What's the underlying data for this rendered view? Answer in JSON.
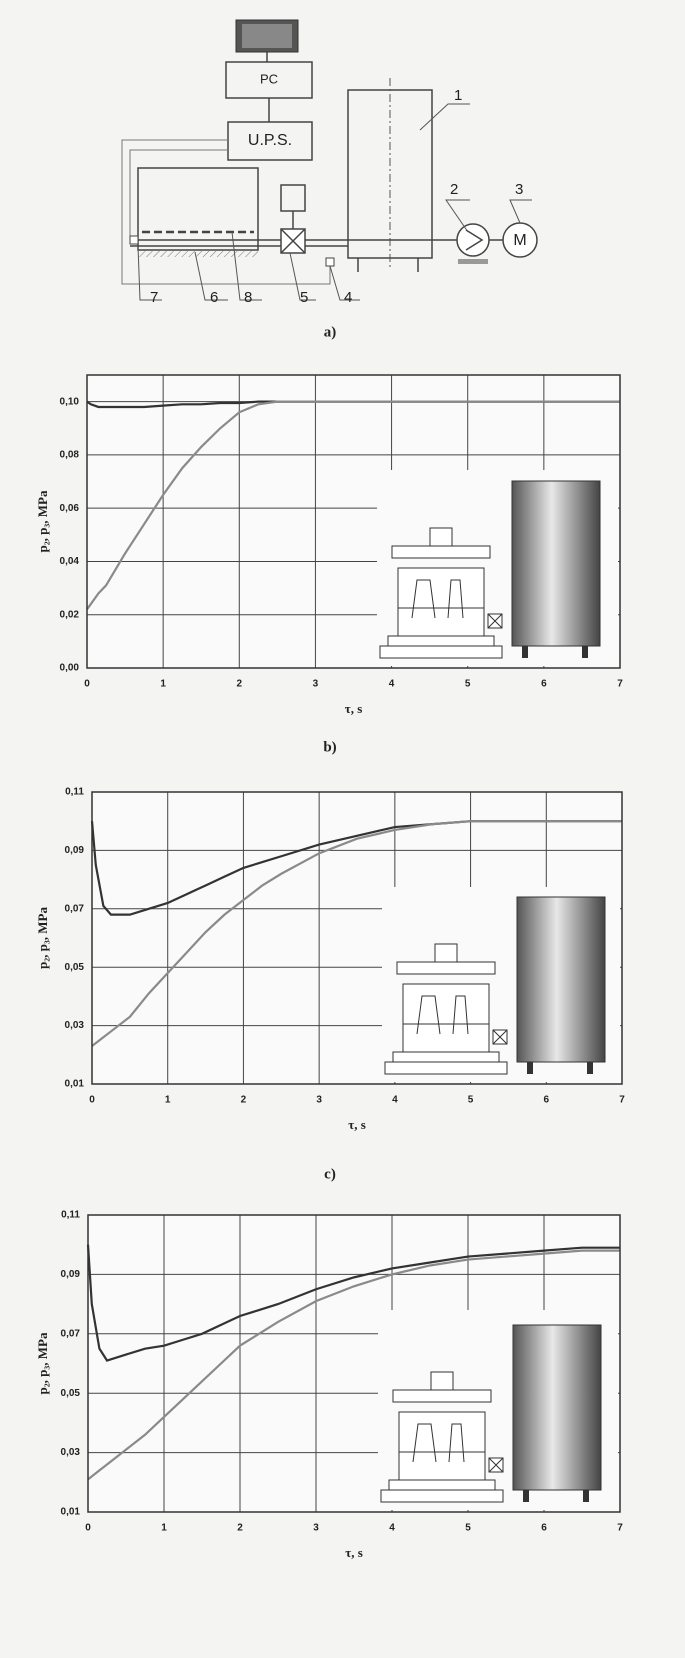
{
  "diagram": {
    "pc": "PC",
    "ups": "U.P.S.",
    "motor": "M",
    "numbers": [
      "1",
      "2",
      "3",
      "4",
      "5",
      "6",
      "7",
      "8"
    ],
    "caption": "a)"
  },
  "chart_data": [
    {
      "type": "line",
      "caption": "b)",
      "y_label": "p₂, p₃, MPa",
      "x_label": "τ, s",
      "grid": true,
      "x": [
        0,
        0.05,
        0.15,
        0.25,
        0.5,
        0.75,
        1,
        1.25,
        1.5,
        1.75,
        2,
        2.25,
        2.5,
        3,
        3.5,
        4,
        4.5,
        5,
        5.5,
        6,
        6.5,
        7
      ],
      "series": [
        {
          "color": "#333333",
          "values": [
            0.1,
            0.099,
            0.098,
            0.098,
            0.098,
            0.098,
            0.0985,
            0.099,
            0.099,
            0.0995,
            0.0995,
            0.1,
            0.1,
            0.1,
            0.1,
            0.1,
            0.1,
            0.1,
            0.1,
            0.1,
            0.1,
            0.1
          ]
        },
        {
          "color": "#8a8a8a",
          "values": [
            0.022,
            0.024,
            0.028,
            0.031,
            0.043,
            0.054,
            0.065,
            0.075,
            0.083,
            0.09,
            0.096,
            0.099,
            0.1,
            0.1,
            0.1,
            0.1,
            0.1,
            0.1,
            0.1,
            0.1,
            0.1,
            0.1
          ]
        }
      ],
      "xlim": [
        0,
        7
      ],
      "xticks": [
        0,
        1,
        2,
        3,
        4,
        5,
        6,
        7
      ],
      "ylim": [
        0,
        0.11
      ],
      "yticks": [
        {
          "value": 0,
          "label": "0,00"
        },
        {
          "value": 0.02,
          "label": "0,02"
        },
        {
          "value": 0.04,
          "label": "0,04"
        },
        {
          "value": 0.06,
          "label": "0,06"
        },
        {
          "value": 0.08,
          "label": "0,08"
        },
        {
          "value": 0.1,
          "label": "0,10"
        }
      ]
    },
    {
      "type": "line",
      "caption": "c)",
      "y_label": "p₂, p₃, MPa",
      "x_label": "τ, s",
      "grid": true,
      "x": [
        0,
        0.05,
        0.15,
        0.25,
        0.5,
        0.75,
        1,
        1.25,
        1.5,
        1.75,
        2,
        2.25,
        2.5,
        3,
        3.5,
        4,
        4.5,
        5,
        5.5,
        6,
        6.5,
        7
      ],
      "series": [
        {
          "color": "#333333",
          "values": [
            0.1,
            0.085,
            0.071,
            0.068,
            0.068,
            0.07,
            0.072,
            0.075,
            0.078,
            0.081,
            0.084,
            0.086,
            0.088,
            0.092,
            0.095,
            0.098,
            0.099,
            0.1,
            0.1,
            0.1,
            0.1,
            0.1
          ]
        },
        {
          "color": "#8a8a8a",
          "values": [
            0.023,
            0.024,
            0.026,
            0.028,
            0.033,
            0.041,
            0.048,
            0.055,
            0.062,
            0.068,
            0.073,
            0.078,
            0.082,
            0.089,
            0.094,
            0.097,
            0.099,
            0.1,
            0.1,
            0.1,
            0.1,
            0.1
          ]
        }
      ],
      "xlim": [
        0,
        7
      ],
      "xticks": [
        0,
        1,
        2,
        3,
        4,
        5,
        6,
        7
      ],
      "ylim": [
        0.01,
        0.11
      ],
      "yticks": [
        {
          "value": 0.01,
          "label": "0,01"
        },
        {
          "value": 0.03,
          "label": "0,03"
        },
        {
          "value": 0.05,
          "label": "0,05"
        },
        {
          "value": 0.07,
          "label": "0,07"
        },
        {
          "value": 0.09,
          "label": "0,09"
        },
        {
          "value": 0.11,
          "label": "0,11"
        }
      ]
    },
    {
      "type": "line",
      "y_label": "p₂, p₃, MPa",
      "x_label": "τ, s",
      "grid": true,
      "x": [
        0,
        0.05,
        0.15,
        0.25,
        0.5,
        0.75,
        1,
        1.25,
        1.5,
        1.75,
        2,
        2.25,
        2.5,
        3,
        3.5,
        4,
        4.5,
        5,
        5.5,
        6,
        6.5,
        7
      ],
      "series": [
        {
          "color": "#333333",
          "values": [
            0.1,
            0.08,
            0.065,
            0.061,
            0.063,
            0.065,
            0.066,
            0.068,
            0.07,
            0.073,
            0.076,
            0.078,
            0.08,
            0.085,
            0.089,
            0.092,
            0.094,
            0.096,
            0.097,
            0.098,
            0.099,
            0.099
          ]
        },
        {
          "color": "#8a8a8a",
          "values": [
            0.021,
            0.022,
            0.024,
            0.026,
            0.031,
            0.036,
            0.042,
            0.048,
            0.054,
            0.06,
            0.066,
            0.07,
            0.074,
            0.081,
            0.086,
            0.09,
            0.093,
            0.095,
            0.096,
            0.097,
            0.098,
            0.098
          ]
        }
      ],
      "xlim": [
        0,
        7
      ],
      "xticks": [
        0,
        1,
        2,
        3,
        4,
        5,
        6,
        7
      ],
      "ylim": [
        0.01,
        0.11
      ],
      "yticks": [
        {
          "value": 0.01,
          "label": "0,01"
        },
        {
          "value": 0.03,
          "label": "0,03"
        },
        {
          "value": 0.05,
          "label": "0,05"
        },
        {
          "value": 0.07,
          "label": "0,07"
        },
        {
          "value": 0.09,
          "label": "0,09"
        },
        {
          "value": 0.11,
          "label": "0,11"
        }
      ]
    }
  ]
}
